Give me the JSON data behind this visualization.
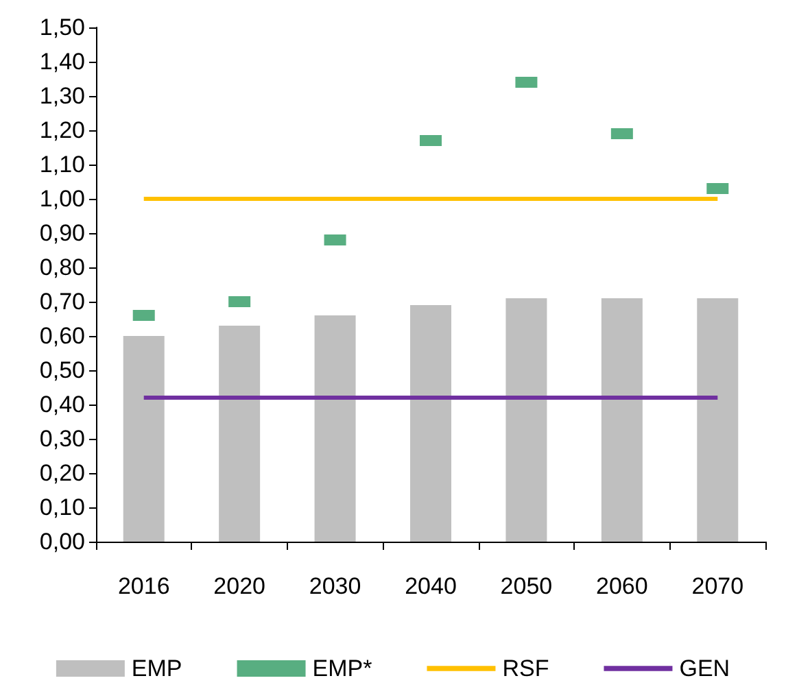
{
  "chart_data": {
    "type": "bar",
    "categories": [
      "2016",
      "2020",
      "2030",
      "2040",
      "2050",
      "2060",
      "2070"
    ],
    "series": [
      {
        "name": "EMP",
        "color": "#bfbfbf",
        "values": [
          0.6,
          0.63,
          0.66,
          0.69,
          0.71,
          0.71,
          0.71
        ]
      },
      {
        "name": "EMP*",
        "type": "scatter",
        "marker": "square",
        "color": "#2e9a62",
        "values": [
          0.66,
          0.7,
          0.88,
          1.17,
          1.34,
          1.19,
          1.03
        ]
      },
      {
        "name": "RSF",
        "type": "line",
        "marker": "none",
        "color": "#ffc000",
        "values": [
          1.0,
          1.0,
          1.0,
          1.0,
          1.0,
          1.0,
          1.0
        ]
      },
      {
        "name": "GEN",
        "type": "line",
        "marker": "none",
        "color": "#7030a0",
        "values": [
          0.42,
          0.42,
          0.42,
          0.42,
          0.42,
          0.42,
          0.42
        ]
      }
    ],
    "ylim": [
      0,
      1.5
    ],
    "yticks": [
      {
        "value": 0,
        "label": "0,00"
      },
      {
        "value": 0.1,
        "label": "0,10"
      },
      {
        "value": 0.2,
        "label": "0,20"
      },
      {
        "value": 0.3,
        "label": "0,30"
      },
      {
        "value": 0.4,
        "label": "0,40"
      },
      {
        "value": 0.5,
        "label": "0,50"
      },
      {
        "value": 0.6,
        "label": "0,60"
      },
      {
        "value": 0.7,
        "label": "0,70"
      },
      {
        "value": 0.8,
        "label": "0,80"
      },
      {
        "value": 0.9,
        "label": "0,90"
      },
      {
        "value": 1.0,
        "label": "1,00"
      },
      {
        "value": 1.1,
        "label": "1,10"
      },
      {
        "value": 1.2,
        "label": "1,20"
      },
      {
        "value": 1.3,
        "label": "1,30"
      },
      {
        "value": 1.4,
        "label": "1,40"
      },
      {
        "value": 1.5,
        "label": "1,50"
      }
    ],
    "grid": false,
    "legend": "bottom"
  }
}
